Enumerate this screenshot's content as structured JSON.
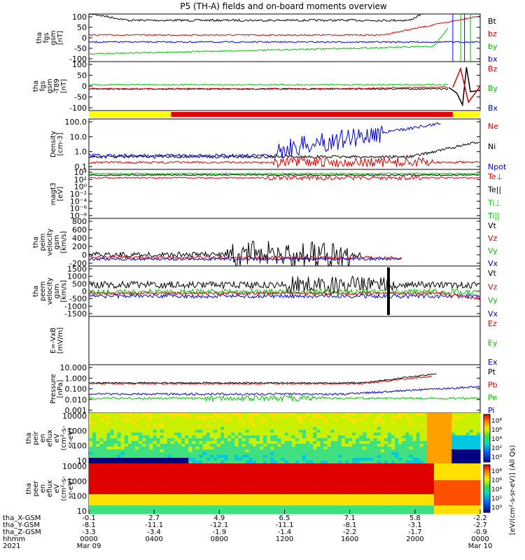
{
  "title": "P5 (TH-A) fields and on-board moments overview",
  "colors": {
    "black": "#000000",
    "red": "#e00000",
    "green": "#00c800",
    "blue": "#0000e0",
    "yellow": "#ffff00"
  },
  "chart_data": {
    "type": "line",
    "x_axis": {
      "row_labels": [
        "tha_X-GSM",
        "tha_Y-GSM",
        "tha_Z-GSM",
        "hhmm",
        "2021"
      ],
      "ticks": [
        {
          "x": "-0.1",
          "y": "-8.1",
          "z": "-3.3",
          "hhmm": "0000",
          "date": "Mar 09"
        },
        {
          "x": "2.7",
          "y": "-11.1",
          "z": "-3.4",
          "hhmm": "0400",
          "date": ""
        },
        {
          "x": "4.9",
          "y": "-12.1",
          "z": "-1.9",
          "hhmm": "0800",
          "date": ""
        },
        {
          "x": "6.5",
          "y": "-11.1",
          "z": "-1.4",
          "hhmm": "1200",
          "date": ""
        },
        {
          "x": "7.1",
          "y": "-8.1",
          "z": "-2.2",
          "hhmm": "1600",
          "date": ""
        },
        {
          "x": "5.8",
          "y": "-3.1",
          "z": "-1.7",
          "hhmm": "2000",
          "date": ""
        },
        {
          "x": "-2.2",
          "y": "-2.7",
          "z": "-0.9",
          "hhmm": "0000",
          "date": "Mar 10"
        }
      ]
    },
    "panels": [
      {
        "id": "fgs",
        "ylabel": [
          "tha",
          "fgs",
          "gsm",
          "[nT]"
        ],
        "yticks": [
          "100",
          "50",
          "0",
          "-50",
          "-100"
        ],
        "legend": [
          {
            "name": "Bt",
            "color": "#000000"
          },
          {
            "name": "bz",
            "color": "#e00000"
          },
          {
            "name": "by",
            "color": "#00c800"
          },
          {
            "name": "bx",
            "color": "#0000e0"
          }
        ]
      },
      {
        "id": "fgs_dif",
        "ylabel": [
          "tha",
          "fgs",
          "gsm",
          "-T89",
          "[nT]"
        ],
        "yticks": [
          "100",
          "50",
          "0",
          "-50",
          "-100"
        ],
        "legend": [
          {
            "name": "Bz",
            "color": "#e00000"
          },
          {
            "name": "By",
            "color": "#00c800"
          },
          {
            "name": "Bx",
            "color": "#0000e0"
          }
        ]
      },
      {
        "id": "density",
        "ylabel": [
          "Density",
          "[cm-3]"
        ],
        "yticks": [
          "100.0",
          "10.0",
          "1.0",
          "0.1"
        ],
        "legend": [
          {
            "name": "Ne",
            "color": "#e00000"
          },
          {
            "name": "Ni",
            "color": "#000000"
          },
          {
            "name": "Npot",
            "color": "#0000e0"
          }
        ]
      },
      {
        "id": "temp",
        "ylabel": [
          "magt3",
          "[eV]"
        ],
        "yticks": [
          "10⁴",
          "10²",
          "10⁰",
          "10⁻²",
          "10⁻⁴",
          "10⁻⁶",
          "10⁻⁸"
        ],
        "legend": [
          {
            "name": "Te⊥",
            "color": "#e00000"
          },
          {
            "name": "Te||",
            "color": "#000000"
          },
          {
            "name": "Ti⊥",
            "color": "#00c800"
          },
          {
            "name": "Ti||",
            "color": "#00c800"
          }
        ]
      },
      {
        "id": "vi",
        "ylabel": [
          "tha",
          "peim",
          "velocity",
          "gsm",
          "[km/s]"
        ],
        "yticks": [
          "800",
          "600",
          "400",
          "200",
          "0",
          "-200"
        ],
        "legend": [
          {
            "name": "Vt",
            "color": "#000000"
          },
          {
            "name": "Vz",
            "color": "#e00000"
          },
          {
            "name": "Vy",
            "color": "#00c800"
          },
          {
            "name": "Vx",
            "color": "#0000e0"
          }
        ]
      },
      {
        "id": "ve",
        "ylabel": [
          "tha",
          "peem",
          "velocity",
          "gsm",
          "[km/s]"
        ],
        "yticks": [
          "1500",
          "1000",
          "500",
          "0",
          "-500",
          "-1000",
          "-1500"
        ],
        "legend": [
          {
            "name": "Vt",
            "color": "#000000"
          },
          {
            "name": "Vz",
            "color": "#e00000"
          },
          {
            "name": "Vy",
            "color": "#00c800"
          },
          {
            "name": "Vx",
            "color": "#0000e0"
          }
        ]
      },
      {
        "id": "efield",
        "ylabel": [
          "E=-VxB",
          "[mV/m]"
        ],
        "yticks": [],
        "legend": [
          {
            "name": "Ez",
            "color": "#e00000"
          },
          {
            "name": "Ey",
            "color": "#00c800"
          },
          {
            "name": "Ex",
            "color": "#0000e0"
          }
        ]
      },
      {
        "id": "pressure",
        "ylabel": [
          "Pressure",
          "[nPa]"
        ],
        "yticks": [
          "10.000",
          "1.000",
          "0.100",
          "0.010",
          "0.001"
        ],
        "legend": [
          {
            "name": "Pt",
            "color": "#000000"
          },
          {
            "name": "Pb",
            "color": "#e00000"
          },
          {
            "name": "Pe",
            "color": "#00c800"
          },
          {
            "name": "Pi",
            "color": "#0000e0"
          }
        ]
      },
      {
        "id": "peir",
        "ylabel": [
          "tha",
          "peir",
          "en",
          "eflux",
          "eV",
          "(cm²-s-",
          "sr-eV)"
        ],
        "yticks": [
          "10000",
          "1000",
          "100",
          "10"
        ],
        "colorbar": {
          "ticks": [
            "10⁸",
            "10⁶",
            "10⁴",
            "10²",
            "10⁰"
          ],
          "label": "[eV/(cm²-s-sr-eV)] (All Qs)"
        }
      },
      {
        "id": "peer",
        "ylabel": [
          "tha",
          "peer",
          "en",
          "eflux",
          "eV",
          "(cm²-s-",
          "sr-eV)"
        ],
        "yticks": [
          "10000",
          "1000",
          "100",
          "10"
        ],
        "colorbar": {
          "ticks": [
            "10⁸",
            "10⁶",
            "10⁴",
            "10²",
            "10⁰"
          ],
          "label": ""
        }
      }
    ]
  }
}
